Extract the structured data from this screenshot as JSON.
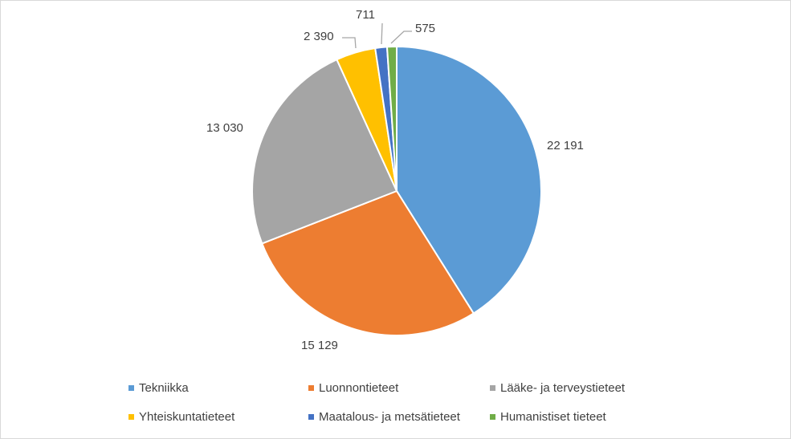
{
  "chart_data": {
    "type": "pie",
    "title": "",
    "start_angle_deg": 0,
    "direction": "clockwise",
    "categories": [
      "Tekniikka",
      "Luonnontieteet",
      "Lääke- ja terveystieteet",
      "Yhteiskuntatieteet",
      "Maatalous- ja metsätieteet",
      "Humanistiset tieteet"
    ],
    "values": [
      22191,
      15129,
      13030,
      2390,
      711,
      575
    ],
    "data_labels": [
      "22 191",
      "15 129",
      "13 030",
      "2 390",
      "711",
      "575"
    ],
    "colors": [
      "#5b9bd5",
      "#ed7d31",
      "#a5a5a5",
      "#ffc000",
      "#4472c4",
      "#70ad47"
    ],
    "legend_position": "bottom"
  }
}
